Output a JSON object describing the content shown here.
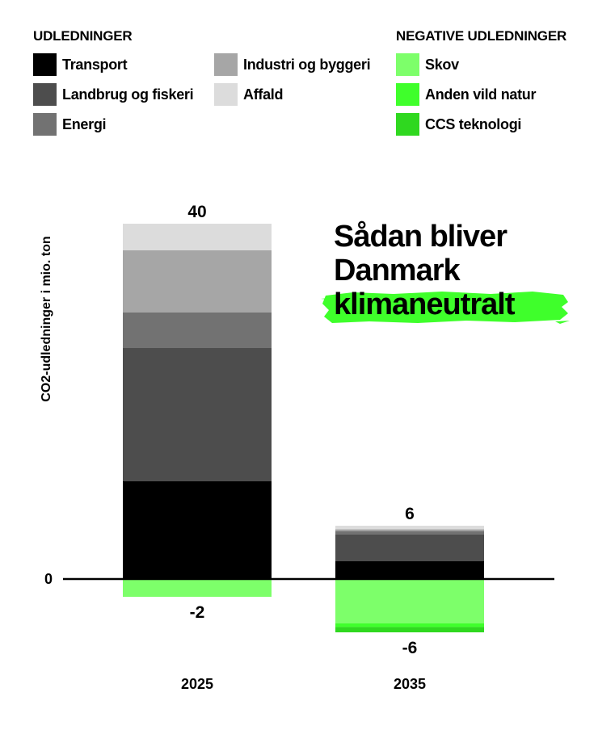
{
  "legend": {
    "emissions_heading": "UDLEDNINGER",
    "negative_heading": "NEGATIVE UDLEDNINGER",
    "items": [
      {
        "label": "Transport",
        "color": "#000000"
      },
      {
        "label": "Landbrug og fiskeri",
        "color": "#4d4d4d"
      },
      {
        "label": "Energi",
        "color": "#727272"
      },
      {
        "label": "Industri og byggeri",
        "color": "#a6a6a6"
      },
      {
        "label": "Affald",
        "color": "#dcdcdc"
      }
    ],
    "negative_items": [
      {
        "label": "Skov",
        "color": "#7dff6a"
      },
      {
        "label": "Anden vild natur",
        "color": "#3fff2b"
      },
      {
        "label": "CCS teknologi",
        "color": "#2fd81f"
      }
    ]
  },
  "headline": {
    "line1": "Sådan bliver",
    "line2": "Danmark",
    "line3": "klimaneutralt",
    "highlight_color": "#3fff2b"
  },
  "chart_data": {
    "type": "bar",
    "stacked": true,
    "categories": [
      "2025",
      "2035"
    ],
    "ylabel": "CO2-udledninger i mio. ton",
    "zero_label": "0",
    "series": [
      {
        "name": "Transport",
        "color": "#000000",
        "values": [
          11,
          2
        ]
      },
      {
        "name": "Landbrug og fiskeri",
        "color": "#4d4d4d",
        "values": [
          15,
          3
        ]
      },
      {
        "name": "Energi",
        "color": "#727272",
        "values": [
          4,
          0.4
        ]
      },
      {
        "name": "Industri og byggeri",
        "color": "#a6a6a6",
        "values": [
          7,
          0.2
        ]
      },
      {
        "name": "Affald",
        "color": "#dcdcdc",
        "values": [
          3,
          0.4
        ]
      },
      {
        "name": "Skov",
        "color": "#7dff6a",
        "values": [
          -2,
          -5
        ]
      },
      {
        "name": "Anden vild natur",
        "color": "#3fff2b",
        "values": [
          0,
          -0.4
        ]
      },
      {
        "name": "CCS teknologi",
        "color": "#2fd81f",
        "values": [
          0,
          -0.6
        ]
      }
    ],
    "totals_positive": [
      "40",
      "6"
    ],
    "totals_negative": [
      "-2",
      "-6"
    ]
  }
}
